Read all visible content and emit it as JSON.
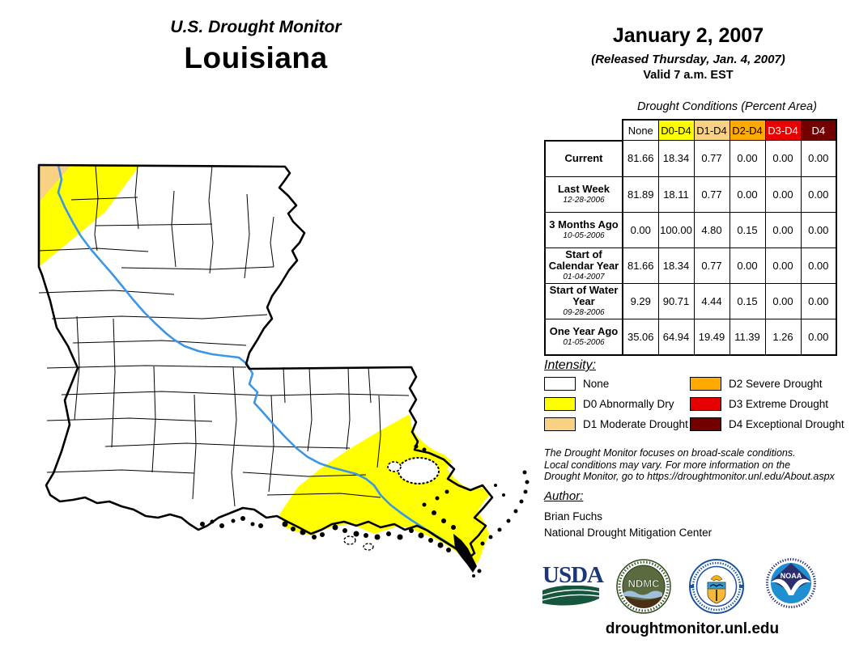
{
  "header": {
    "program": "U.S. Drought Monitor",
    "region": "Louisiana"
  },
  "date_block": {
    "date": "January 2, 2007",
    "released": "(Released Thursday, Jan. 4, 2007)",
    "valid": "Valid 7 a.m. EST"
  },
  "table": {
    "title": "Drought Conditions (Percent Area)",
    "columns": [
      "None",
      "D0-D4",
      "D1-D4",
      "D2-D4",
      "D3-D4",
      "D4"
    ],
    "column_colors": [
      "#FFFFFF",
      "#FFFF00",
      "#F8D183",
      "#FFAA00",
      "#E60000",
      "#730000"
    ],
    "column_text_colors": [
      "#000000",
      "#000000",
      "#000000",
      "#000000",
      "#FFFFFF",
      "#FFFFFF"
    ],
    "rows": [
      {
        "label": "Current",
        "date": "",
        "values": [
          "81.66",
          "18.34",
          "0.77",
          "0.00",
          "0.00",
          "0.00"
        ]
      },
      {
        "label": "Last Week",
        "date": "12-28-2006",
        "values": [
          "81.89",
          "18.11",
          "0.77",
          "0.00",
          "0.00",
          "0.00"
        ]
      },
      {
        "label": "3 Months Ago",
        "date": "10-05-2006",
        "values": [
          "0.00",
          "100.00",
          "4.80",
          "0.15",
          "0.00",
          "0.00"
        ]
      },
      {
        "label": "Start of Calendar Year",
        "date": "01-04-2007",
        "values": [
          "81.66",
          "18.34",
          "0.77",
          "0.00",
          "0.00",
          "0.00"
        ]
      },
      {
        "label": "Start of Water Year",
        "date": "09-28-2006",
        "values": [
          "9.29",
          "90.71",
          "4.44",
          "0.15",
          "0.00",
          "0.00"
        ]
      },
      {
        "label": "One Year Ago",
        "date": "01-05-2006",
        "values": [
          "35.06",
          "64.94",
          "19.49",
          "11.39",
          "1.26",
          "0.00"
        ]
      }
    ]
  },
  "legend": {
    "title": "Intensity:",
    "items": [
      {
        "code": "none",
        "label": "None",
        "color": "#FFFFFF"
      },
      {
        "code": "d0",
        "label": "D0 Abnormally Dry",
        "color": "#FFFF00"
      },
      {
        "code": "d1",
        "label": "D1 Moderate Drought",
        "color": "#F8D183"
      },
      {
        "code": "d2",
        "label": "D2 Severe Drought",
        "color": "#FFAA00"
      },
      {
        "code": "d3",
        "label": "D3 Extreme Drought",
        "color": "#E60000"
      },
      {
        "code": "d4",
        "label": "D4 Exceptional Drought",
        "color": "#730000"
      }
    ]
  },
  "disclaimer": {
    "lines": [
      "The Drought Monitor focuses on broad-scale conditions.",
      "Local conditions may vary. For more information on the",
      "Drought Monitor, go to https://droughtmonitor.unl.edu/About.aspx"
    ]
  },
  "author": {
    "title": "Author:",
    "name": "Brian Fuchs",
    "org": "National Drought Mitigation Center"
  },
  "logos": [
    {
      "name": "usda-logo",
      "label": "USDA"
    },
    {
      "name": "ndmc-logo",
      "label": "NDMC"
    },
    {
      "name": "doc-logo",
      "label": "Department of Commerce seal"
    },
    {
      "name": "noaa-logo",
      "label": "NOAA"
    }
  ],
  "footer": {
    "url": "droughtmonitor.unl.edu"
  },
  "map": {
    "state": "Louisiana",
    "fill_none": "#FFFFFF",
    "fill_d0": "#FFFF00",
    "fill_d1": "#F8D183",
    "river_color": "#3C96E6",
    "border_color": "#000000"
  }
}
